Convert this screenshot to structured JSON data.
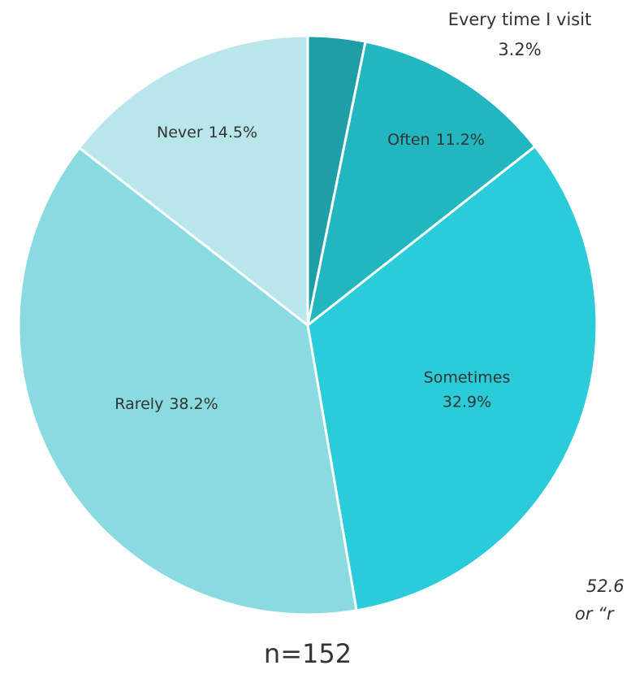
{
  "chart_data": {
    "type": "pie",
    "categories": [
      "Every time I visit",
      "Often",
      "Sometimes",
      "Rarely",
      "Never"
    ],
    "values": [
      3.2,
      11.2,
      32.9,
      38.2,
      14.5
    ],
    "value_labels": [
      "3.2%",
      "11.2%",
      "32.9%",
      "38.2%",
      "14.5%"
    ],
    "colors": [
      "#1e9ea6",
      "#22b6c1",
      "#29ccd8",
      "#8adbe1",
      "#b8e6ea"
    ],
    "annotations": [
      "52.6",
      "or “r"
    ],
    "note": "n=152"
  }
}
